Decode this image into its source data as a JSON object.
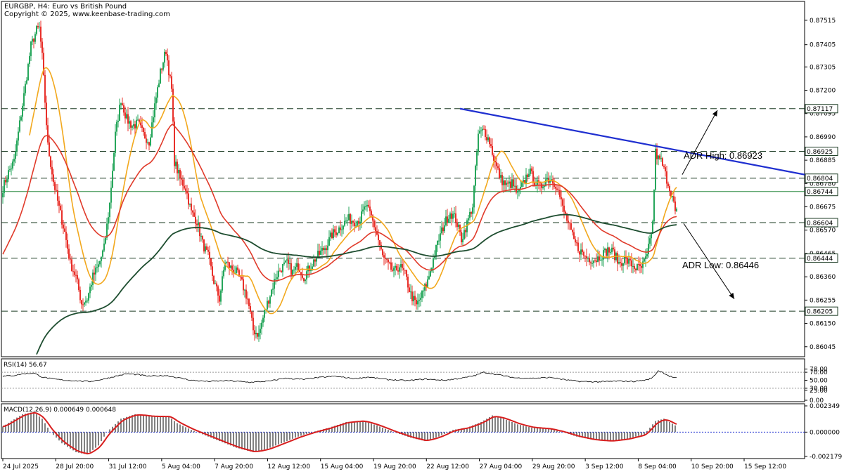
{
  "header": {
    "symbol_line": "EURGBP, H4:  Euro vs British Pound",
    "copyright": "Copyright © 2025, www.keenbase-trading.com"
  },
  "colors": {
    "bull": "#26a65b",
    "bear": "#e8302a",
    "ma_fast": "#f2a81d",
    "ma_mid": "#e03a2a",
    "ma_slow": "#1d4d2f",
    "trendline": "#1f2fd0",
    "macd_signal": "#d81e1e"
  },
  "chart_data": [
    {
      "type": "candlestick",
      "name": "price",
      "ylim": [
        0.86,
        0.876
      ],
      "x_ticks": [
        "24 Jul 2025",
        "28 Jul 20:00",
        "31 Jul 12:00",
        "5 Aug 04:00",
        "7 Aug 20:00",
        "12 Aug 12:00",
        "15 Aug 04:00",
        "19 Aug 20:00",
        "22 Aug 12:00",
        "27 Aug 04:00",
        "29 Aug 20:00",
        "3 Sep 12:00",
        "8 Sep 04:00",
        "10 Sep 20:00",
        "15 Sep 12:00"
      ],
      "y_ticks": [
        0.87515,
        0.87405,
        0.87305,
        0.872,
        0.87095,
        0.8699,
        0.86885,
        0.8678,
        0.86675,
        0.8657,
        0.86465,
        0.8636,
        0.86255,
        0.8615,
        0.86045
      ],
      "close_anchors": [
        [
          0,
          0.8676
        ],
        [
          4,
          0.8683
        ],
        [
          8,
          0.8688
        ],
        [
          12,
          0.8705
        ],
        [
          16,
          0.8722
        ],
        [
          20,
          0.874
        ],
        [
          24,
          0.8747
        ],
        [
          26,
          0.8748
        ],
        [
          28,
          0.8735
        ],
        [
          32,
          0.8695
        ],
        [
          36,
          0.8679
        ],
        [
          40,
          0.8667
        ],
        [
          44,
          0.8656
        ],
        [
          48,
          0.8642
        ],
        [
          52,
          0.8636
        ],
        [
          56,
          0.8624
        ],
        [
          60,
          0.8626
        ],
        [
          64,
          0.8636
        ],
        [
          68,
          0.8641
        ],
        [
          72,
          0.8649
        ],
        [
          76,
          0.8669
        ],
        [
          80,
          0.87
        ],
        [
          84,
          0.8716
        ],
        [
          88,
          0.8707
        ],
        [
          92,
          0.8704
        ],
        [
          96,
          0.8705
        ],
        [
          100,
          0.87
        ],
        [
          104,
          0.8697
        ],
        [
          108,
          0.8713
        ],
        [
          112,
          0.8728
        ],
        [
          116,
          0.8738
        ],
        [
          120,
          0.872
        ],
        [
          122,
          0.8688
        ],
        [
          126,
          0.868
        ],
        [
          130,
          0.8676
        ],
        [
          134,
          0.8665
        ],
        [
          138,
          0.8661
        ],
        [
          142,
          0.8651
        ],
        [
          146,
          0.8645
        ],
        [
          150,
          0.8634
        ],
        [
          154,
          0.8626
        ],
        [
          158,
          0.8643
        ],
        [
          162,
          0.864
        ],
        [
          166,
          0.8638
        ],
        [
          170,
          0.8633
        ],
        [
          174,
          0.8626
        ],
        [
          178,
          0.8612
        ],
        [
          182,
          0.861
        ],
        [
          186,
          0.862
        ],
        [
          190,
          0.8628
        ],
        [
          194,
          0.8636
        ],
        [
          198,
          0.864
        ],
        [
          202,
          0.8642
        ],
        [
          206,
          0.8638
        ],
        [
          210,
          0.8641
        ],
        [
          214,
          0.8636
        ],
        [
          218,
          0.864
        ],
        [
          222,
          0.8644
        ],
        [
          226,
          0.8647
        ],
        [
          230,
          0.865
        ],
        [
          234,
          0.8655
        ],
        [
          238,
          0.8657
        ],
        [
          242,
          0.866
        ],
        [
          246,
          0.8662
        ],
        [
          250,
          0.8661
        ],
        [
          254,
          0.8662
        ],
        [
          258,
          0.8668
        ],
        [
          262,
          0.8663
        ],
        [
          266,
          0.8655
        ],
        [
          270,
          0.8645
        ],
        [
          274,
          0.8641
        ],
        [
          278,
          0.8638
        ],
        [
          282,
          0.8641
        ],
        [
          286,
          0.8637
        ],
        [
          290,
          0.8628
        ],
        [
          294,
          0.8623
        ],
        [
          298,
          0.8628
        ],
        [
          302,
          0.8634
        ],
        [
          306,
          0.8644
        ],
        [
          310,
          0.8653
        ],
        [
          314,
          0.866
        ],
        [
          318,
          0.8665
        ],
        [
          322,
          0.8662
        ],
        [
          326,
          0.8653
        ],
        [
          330,
          0.866
        ],
        [
          334,
          0.8668
        ],
        [
          338,
          0.87
        ],
        [
          342,
          0.8702
        ],
        [
          346,
          0.8697
        ],
        [
          350,
          0.8687
        ],
        [
          354,
          0.868
        ],
        [
          358,
          0.8677
        ],
        [
          362,
          0.8678
        ],
        [
          366,
          0.8673
        ],
        [
          370,
          0.8678
        ],
        [
          374,
          0.8684
        ],
        [
          378,
          0.8679
        ],
        [
          382,
          0.8676
        ],
        [
          386,
          0.868
        ],
        [
          390,
          0.868
        ],
        [
          394,
          0.8677
        ],
        [
          398,
          0.8667
        ],
        [
          402,
          0.866
        ],
        [
          406,
          0.8652
        ],
        [
          410,
          0.8648
        ],
        [
          414,
          0.8645
        ],
        [
          418,
          0.8644
        ],
        [
          422,
          0.8644
        ],
        [
          426,
          0.8646
        ],
        [
          430,
          0.8648
        ],
        [
          434,
          0.8647
        ],
        [
          438,
          0.8642
        ],
        [
          442,
          0.8644
        ],
        [
          446,
          0.8642
        ],
        [
          450,
          0.864
        ],
        [
          454,
          0.864
        ],
        [
          458,
          0.8645
        ],
        [
          462,
          0.866
        ],
        [
          464,
          0.8692
        ],
        [
          466,
          0.8689
        ],
        [
          468,
          0.8688
        ],
        [
          472,
          0.868
        ],
        [
          476,
          0.8672
        ],
        [
          478,
          0.8665
        ]
      ],
      "moving_averages": [
        {
          "period": "fast",
          "color_key": "ma_fast"
        },
        {
          "period": "mid",
          "color_key": "ma_mid"
        },
        {
          "period": "slow",
          "color_key": "ma_slow"
        }
      ],
      "horizontal_levels": {
        "dashed": [
          0.87117,
          0.86925,
          0.86804,
          0.86604,
          0.86444,
          0.86205
        ],
        "solid": [
          0.86744
        ],
        "price_labels": [
          "0.87117",
          "0.86925",
          "0.86804",
          "0.86744",
          "0.86604",
          "0.86444",
          "0.86205"
        ]
      },
      "trendline": {
        "from": [
          325,
          0.87117
        ],
        "to": [
          570,
          0.8682
        ]
      },
      "annotations": {
        "adr_high": "ADR High: 0.86923",
        "adr_low": "ADR Low: 0.86446"
      },
      "arrows": [
        {
          "from": [
            483,
            0.8682
          ],
          "to": [
            508,
            0.8711
          ],
          "direction": "up"
        },
        {
          "from": [
            484,
            0.866
          ],
          "to": [
            520,
            0.8626
          ],
          "direction": "down"
        }
      ]
    },
    {
      "type": "line",
      "name": "rsi",
      "label": "RSI(14) 56.67",
      "ylim": [
        0,
        100
      ],
      "levels": [
        70,
        30
      ],
      "y_ticks": [
        "78.00",
        "70.00",
        "50.00",
        "30.00",
        "25.00",
        "0.00"
      ],
      "anchors": [
        [
          0,
          60
        ],
        [
          8,
          62
        ],
        [
          14,
          66
        ],
        [
          22,
          68
        ],
        [
          28,
          58
        ],
        [
          34,
          54
        ],
        [
          44,
          50
        ],
        [
          56,
          48
        ],
        [
          62,
          47
        ],
        [
          72,
          53
        ],
        [
          80,
          60
        ],
        [
          88,
          66
        ],
        [
          96,
          64
        ],
        [
          104,
          60
        ],
        [
          116,
          62
        ],
        [
          122,
          58
        ],
        [
          134,
          50
        ],
        [
          146,
          47
        ],
        [
          160,
          49
        ],
        [
          176,
          45
        ],
        [
          190,
          48
        ],
        [
          200,
          55
        ],
        [
          214,
          52
        ],
        [
          222,
          56
        ],
        [
          236,
          60
        ],
        [
          250,
          54
        ],
        [
          260,
          58
        ],
        [
          272,
          52
        ],
        [
          288,
          49
        ],
        [
          300,
          53
        ],
        [
          314,
          50
        ],
        [
          326,
          55
        ],
        [
          336,
          62
        ],
        [
          342,
          70
        ],
        [
          352,
          64
        ],
        [
          364,
          56
        ],
        [
          376,
          55
        ],
        [
          390,
          57
        ],
        [
          398,
          52
        ],
        [
          410,
          47
        ],
        [
          424,
          46
        ],
        [
          438,
          48
        ],
        [
          448,
          47
        ],
        [
          458,
          51
        ],
        [
          462,
          57
        ],
        [
          466,
          74
        ],
        [
          470,
          68
        ],
        [
          474,
          60
        ],
        [
          478,
          56
        ]
      ]
    },
    {
      "type": "histogram_line",
      "name": "macd",
      "label": "MACD(12,26,9) 0.000649 0.000648",
      "ylim": [
        -0.002179,
        0.002349
      ],
      "y_ticks": [
        "0.002349",
        "0.000000",
        "-0.002179"
      ],
      "hist_anchors": [
        [
          0,
          0.0005
        ],
        [
          6,
          0.001
        ],
        [
          14,
          0.0016
        ],
        [
          22,
          0.0018
        ],
        [
          28,
          0.0012
        ],
        [
          34,
          0.0
        ],
        [
          42,
          -0.001
        ],
        [
          52,
          -0.0018
        ],
        [
          60,
          -0.002
        ],
        [
          68,
          -0.0012
        ],
        [
          74,
          0.0
        ],
        [
          84,
          0.0012
        ],
        [
          94,
          0.0016
        ],
        [
          106,
          0.0014
        ],
        [
          118,
          0.0014
        ],
        [
          124,
          0.0008
        ],
        [
          134,
          0.0002
        ],
        [
          144,
          -0.0003
        ],
        [
          156,
          -0.0009
        ],
        [
          166,
          -0.0014
        ],
        [
          178,
          -0.0018
        ],
        [
          188,
          -0.0015
        ],
        [
          198,
          -0.001
        ],
        [
          210,
          -0.0004
        ],
        [
          220,
          0.0
        ],
        [
          232,
          0.0004
        ],
        [
          244,
          0.0009
        ],
        [
          256,
          0.001
        ],
        [
          266,
          0.0006
        ],
        [
          278,
          0.0
        ],
        [
          290,
          -0.0005
        ],
        [
          300,
          -0.0008
        ],
        [
          310,
          -0.0004
        ],
        [
          320,
          0.0002
        ],
        [
          330,
          0.0004
        ],
        [
          340,
          0.0009
        ],
        [
          348,
          0.0015
        ],
        [
          356,
          0.0012
        ],
        [
          366,
          0.0007
        ],
        [
          376,
          0.0004
        ],
        [
          388,
          0.0003
        ],
        [
          398,
          0.0
        ],
        [
          408,
          -0.0004
        ],
        [
          420,
          -0.0007
        ],
        [
          432,
          -0.0008
        ],
        [
          444,
          -0.0006
        ],
        [
          456,
          -0.0002
        ],
        [
          464,
          0.001
        ],
        [
          470,
          0.0012
        ],
        [
          478,
          0.0006
        ]
      ],
      "signal_smoothing": 6
    }
  ]
}
